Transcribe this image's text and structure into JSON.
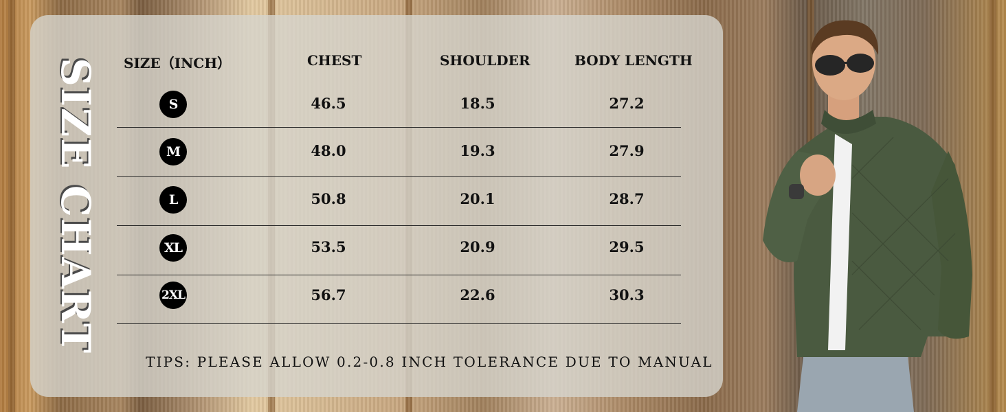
{
  "title": "SIZE CHART",
  "headers": [
    "SIZE（INCH）",
    "CHEST",
    "SHOULDER",
    "BODY LENGTH"
  ],
  "rows": [
    {
      "size": "S",
      "chest": "46.5",
      "shoulder": "18.5",
      "body_length": "27.2"
    },
    {
      "size": "M",
      "chest": "48.0",
      "shoulder": "19.3",
      "body_length": "27.9"
    },
    {
      "size": "L",
      "chest": "50.8",
      "shoulder": "20.1",
      "body_length": "28.7"
    },
    {
      "size": "XL",
      "chest": "53.5",
      "shoulder": "20.9",
      "body_length": "29.5"
    },
    {
      "size": "2XL",
      "chest": "56.7",
      "shoulder": "22.6",
      "body_length": "30.3"
    }
  ],
  "tips": "TIPS: PLEASE ALLOW 0.2-0.8 INCH TOLERANCE DUE TO MANUAL",
  "colors": {
    "jacket": "#4a5a40",
    "badge": "#000000",
    "card": "#d6d4cd"
  },
  "icons": {
    "model": "model-photo-icon"
  }
}
